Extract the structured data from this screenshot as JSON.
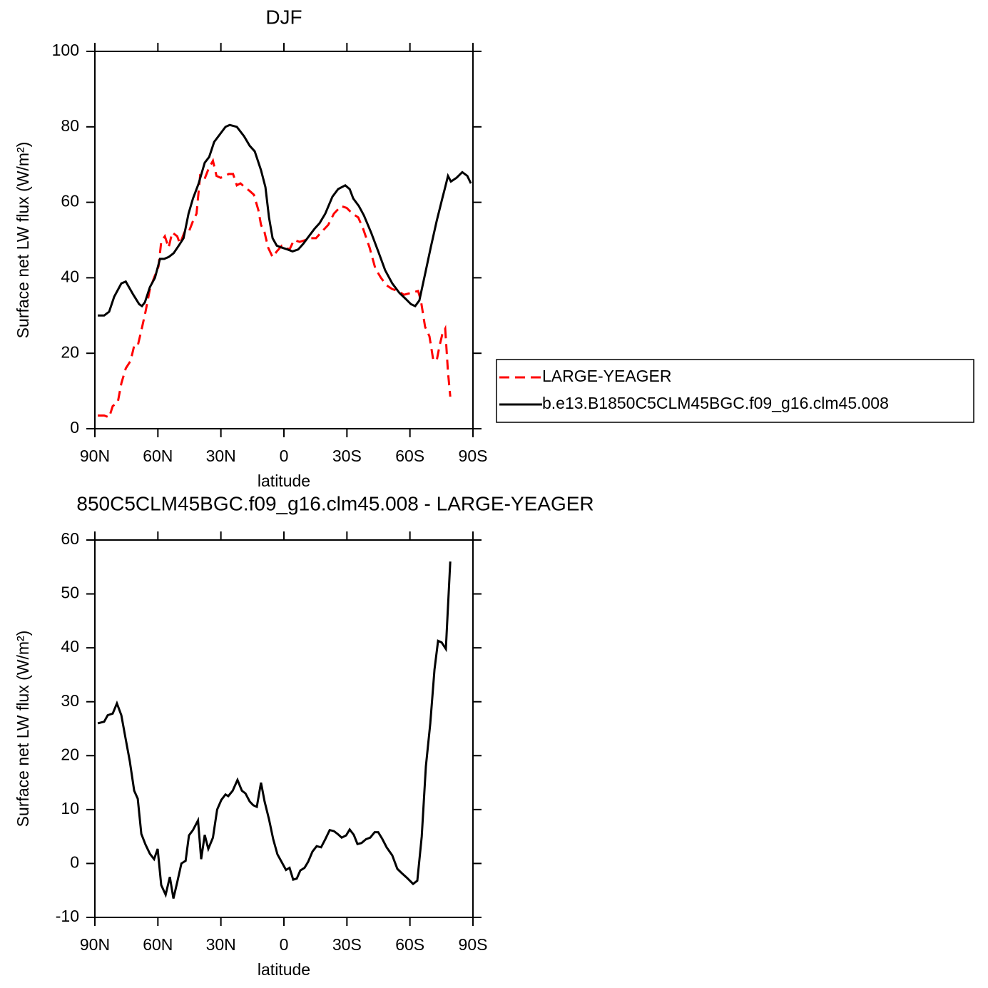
{
  "chart_data": [
    {
      "type": "line",
      "title": "DJF",
      "xlabel": "latitude",
      "ylabel": "Surface net LW flux (W/m²)",
      "xlim": [
        90,
        -90
      ],
      "ylim": [
        0,
        100
      ],
      "xticks": [
        {
          "value": 90,
          "label": "90N"
        },
        {
          "value": 60,
          "label": "60N"
        },
        {
          "value": 30,
          "label": "30N"
        },
        0,
        {
          "value": -30,
          "label": "30S"
        },
        {
          "value": -60,
          "label": "60S"
        },
        {
          "value": -90,
          "label": "90S"
        }
      ],
      "yticks": [
        0,
        20,
        40,
        60,
        80,
        100
      ],
      "legend": "right",
      "series": [
        {
          "name": "LARGE-YEAGER",
          "color": "#ff0000",
          "linestyle": "dashed",
          "x": [
            88.6,
            85.6,
            83.2,
            81.5,
            79.1,
            77.4,
            75.3,
            73.0,
            71.3,
            69.6,
            67.9,
            65.9,
            63.8,
            61.8,
            59.7,
            58.4,
            56.7,
            54.9,
            53.2,
            50.8,
            49.5,
            47.4,
            45.4,
            43.3,
            41.6,
            39.9,
            37.9,
            35.8,
            33.8,
            32.1,
            30.1,
            28.0,
            26.3,
            24.2,
            22.4,
            20.7,
            18.6,
            16.3,
            14.3,
            12.2,
            10.9,
            9.2,
            7.5,
            5.4,
            3.4,
            1.0,
            -1.0,
            -2.7,
            -4.8,
            -7.5,
            -10.2,
            -12.9,
            -15.3,
            -17.7,
            -21.1,
            -23.8,
            -27.2,
            -29.9,
            -32.6,
            -35.4,
            -37.7,
            -40.8,
            -43.5,
            -46.2,
            -48.9,
            -51.6,
            -54.4,
            -57.1,
            -60.5,
            -63.9,
            -65.2,
            -67.2,
            -69.3,
            -71.0,
            -72.7,
            -74.1,
            -75.4,
            -76.8,
            -78.1,
            -79.2
          ],
          "values": [
            3.5,
            3.5,
            3,
            6,
            7,
            12,
            16,
            18,
            22,
            22,
            26,
            31,
            37,
            40,
            43,
            49.5,
            51,
            48,
            52,
            51,
            49,
            52,
            52,
            55,
            57,
            67,
            66,
            69,
            71,
            67,
            66.5,
            67,
            67.5,
            67.5,
            64.5,
            65,
            64,
            63,
            62,
            58,
            54,
            52,
            48,
            45.5,
            47,
            48.5,
            48,
            47.5,
            50,
            49.5,
            50,
            50.5,
            50.5,
            52,
            54,
            57,
            59,
            58.5,
            57,
            56,
            53,
            48,
            42.5,
            40,
            38,
            37,
            36.5,
            35.5,
            36,
            36.5,
            34,
            27,
            24.5,
            18.5,
            18,
            22,
            25,
            26.5,
            15,
            8.5
          ]
        },
        {
          "name": "b.e13.B1850C5CLM45BGC.f09_g16.clm45.008",
          "color": "#000000",
          "linestyle": "solid",
          "x": [
            88.6,
            85.6,
            83.2,
            80.8,
            77.4,
            75.3,
            71.7,
            68.9,
            67.6,
            66.2,
            63.8,
            61.4,
            59.0,
            57.0,
            54.9,
            52.5,
            50.1,
            47.8,
            45.4,
            43.3,
            40.6,
            37.7,
            35.6,
            33.2,
            30.5,
            27.8,
            25.8,
            22.4,
            19.0,
            16.3,
            13.9,
            10.9,
            8.8,
            7.1,
            5.4,
            3.4,
            1.0,
            -1.7,
            -4.1,
            -6.8,
            -9.2,
            -11.9,
            -14.6,
            -17.0,
            -19.7,
            -23.1,
            -25.8,
            -29.2,
            -31.3,
            -33.0,
            -35.7,
            -38.1,
            -41.5,
            -44.9,
            -48.2,
            -51.6,
            -55.0,
            -57.8,
            -60.5,
            -62.5,
            -64.5,
            -67.2,
            -69.9,
            -72.7,
            -75.4,
            -76.8,
            -78.1,
            -79.5,
            -82.2,
            -84.9,
            -87.3,
            -89.0
          ],
          "values": [
            30,
            30,
            31,
            35,
            38.5,
            39,
            35.5,
            33,
            32.5,
            33.5,
            37.5,
            40,
            45,
            45,
            45.5,
            46.5,
            48.5,
            50.5,
            57,
            61,
            65,
            70.5,
            72,
            76,
            78,
            80,
            80.5,
            80,
            77.5,
            75,
            73.5,
            68.5,
            64,
            56,
            50.5,
            48.5,
            48,
            47.5,
            47,
            47.5,
            49,
            51,
            53,
            54.5,
            57,
            61.5,
            63.5,
            64.5,
            63.5,
            61,
            59,
            56.5,
            52,
            47,
            42,
            38.5,
            36,
            34.5,
            33,
            32.5,
            34,
            41,
            48,
            55,
            61,
            64,
            67,
            65.5,
            66.5,
            68,
            67,
            65
          ]
        }
      ]
    },
    {
      "type": "line",
      "title": "850C5CLM45BGC.f09_g16.clm45.008 - LARGE-YEAGER",
      "xlabel": "latitude",
      "ylabel": "Surface net LW flux (W/m²)",
      "xlim": [
        90,
        -90
      ],
      "ylim": [
        -10,
        60
      ],
      "xticks": [
        {
          "value": 90,
          "label": "90N"
        },
        {
          "value": 60,
          "label": "60N"
        },
        {
          "value": 30,
          "label": "30N"
        },
        0,
        {
          "value": -30,
          "label": "30S"
        },
        {
          "value": -60,
          "label": "60S"
        },
        {
          "value": -90,
          "label": "90S"
        }
      ],
      "yticks": [
        -10,
        0,
        10,
        20,
        30,
        40,
        50,
        60
      ],
      "series": [
        {
          "color": "#000000",
          "linestyle": "solid",
          "x": [
            88.6,
            85.6,
            83.9,
            81.5,
            79.5,
            77.4,
            75.3,
            73.4,
            71.3,
            69.6,
            67.9,
            65.9,
            63.8,
            61.8,
            60.1,
            58.4,
            56.3,
            54.3,
            52.6,
            50.8,
            48.8,
            46.8,
            45.2,
            43.3,
            40.9,
            39.4,
            37.7,
            36.0,
            33.8,
            31.8,
            29.8,
            27.8,
            26.5,
            24.4,
            22.1,
            20.0,
            18.3,
            16.3,
            14.6,
            12.9,
            10.9,
            9.2,
            7.1,
            5.1,
            3.1,
            1.0,
            -1.0,
            -2.7,
            -4.4,
            -6.1,
            -7.8,
            -9.8,
            -11.5,
            -13.6,
            -15.6,
            -17.7,
            -19.7,
            -21.8,
            -23.8,
            -25.8,
            -27.5,
            -29.6,
            -31.3,
            -33.3,
            -35.0,
            -37.0,
            -39.1,
            -41.1,
            -43.2,
            -44.9,
            -46.9,
            -48.9,
            -51.6,
            -54.0,
            -56.1,
            -58.4,
            -61.5,
            -63.5,
            -65.6,
            -67.6,
            -69.7,
            -71.7,
            -73.4,
            -75.1,
            -77.1,
            -79.2
          ],
          "values": [
            26,
            26.3,
            27.5,
            27.8,
            29.7,
            27.5,
            23,
            19,
            13.5,
            12,
            5.5,
            3.5,
            1.8,
            0.8,
            2.7,
            -4,
            -5.8,
            -2.5,
            -6.5,
            -3.5,
            0,
            0.5,
            5.2,
            6.2,
            8,
            0.8,
            5.3,
            2.7,
            4.8,
            10,
            11.8,
            12.8,
            12.5,
            13.5,
            15.5,
            13.5,
            13,
            11.5,
            10.8,
            10.5,
            15,
            11.5,
            8.2,
            4.5,
            1.7,
            0.2,
            -1.2,
            -0.8,
            -3,
            -2.8,
            -1.3,
            -0.8,
            0.3,
            2.2,
            3.2,
            3,
            4.5,
            6.2,
            6,
            5.4,
            4.8,
            5.2,
            6.3,
            5.3,
            3.6,
            3.8,
            4.5,
            4.8,
            5.8,
            5.8,
            4.5,
            3,
            1.5,
            -1,
            -1.8,
            -2.6,
            -3.8,
            -3.2,
            5,
            18,
            26,
            36,
            41.3,
            41,
            39.8,
            56
          ]
        }
      ]
    }
  ]
}
